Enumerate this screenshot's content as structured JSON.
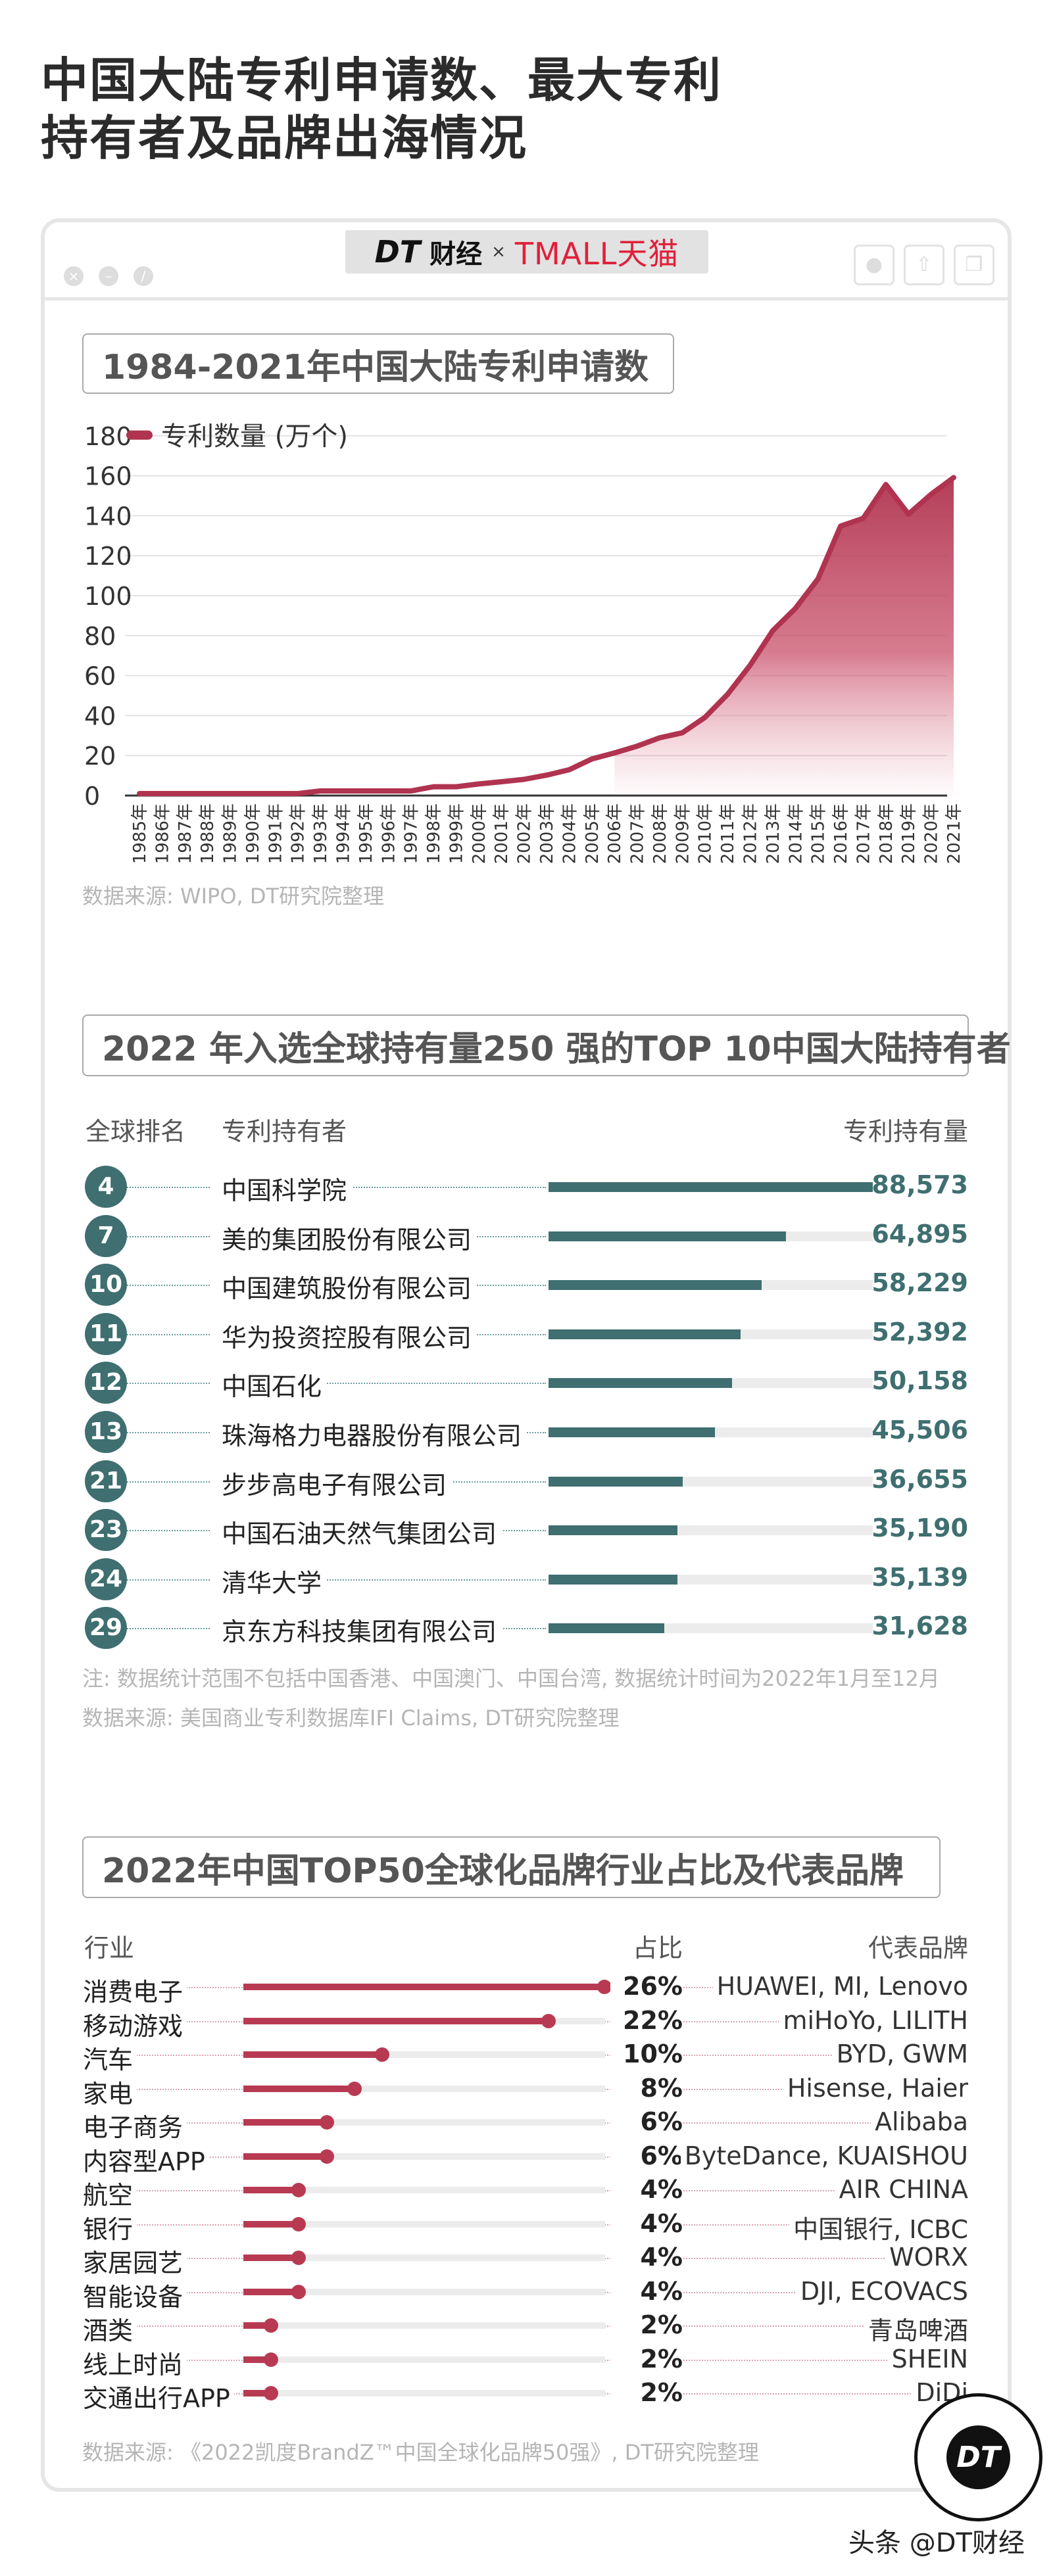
{
  "title_lines": [
    "中国大陆专利申请数、最大专利",
    "持有者及品牌出海情况"
  ],
  "window": {
    "logo_dt": "DT",
    "logo_cj": "财经",
    "logo_x": "×",
    "logo_tmall": "TMALL天猫"
  },
  "colors": {
    "chart_red": "#b0334f",
    "teal": "#3f6f70",
    "lollipop_red": "#b83a52"
  },
  "section1": {
    "title": "1984-2021年中国大陆专利申请数",
    "source": "数据来源: WIPO, DT研究院整理"
  },
  "section2": {
    "title": "2022 年入选全球持有量250 强的TOP 10中国大陆持有者",
    "headers": {
      "rank": "全球排名",
      "holder": "专利持有者",
      "count": "专利持有量"
    },
    "note": "注: 数据统计范围不包括中国香港、中国澳门、中国台湾, 数据统计时间为2022年1月至12月",
    "source": "数据来源: 美国商业专利数据库IFI Claims, DT研究院整理"
  },
  "section3": {
    "title": "2022年中国TOP50全球化品牌行业占比及代表品牌",
    "headers": {
      "industry": "行业",
      "share": "占比",
      "brands": "代表品牌"
    },
    "source": "数据来源: 《2022凯度BrandZ™中国全球化品牌50强》, DT研究院整理"
  },
  "watermark": {
    "logo": "DT",
    "text": "头条 @DT财经"
  },
  "chart_data": [
    {
      "type": "area",
      "title": "1984-2021年中国大陆专利申请数",
      "legend": "专利数量 (万个)",
      "legend_position": "top-left",
      "ylim": [
        0,
        180
      ],
      "yticks": [
        0,
        20,
        40,
        60,
        80,
        100,
        120,
        140,
        160,
        180
      ],
      "grid": true,
      "x": [
        "1985年",
        "1986年",
        "1987年",
        "1988年",
        "1989年",
        "1990年",
        "1991年",
        "1992年",
        "1993年",
        "1994年",
        "1995年",
        "1996年",
        "1997年",
        "1998年",
        "1999年",
        "2000年",
        "2001年",
        "2002年",
        "2003年",
        "2004年",
        "2005年",
        "2006年",
        "2007年",
        "2008年",
        "2009年",
        "2010年",
        "2011年",
        "2012年",
        "2013年",
        "2014年",
        "2015年",
        "2016年",
        "2017年",
        "2018年",
        "2019年",
        "2020年",
        "2021年"
      ],
      "series": [
        {
          "name": "专利数量 (万个)",
          "values": [
            1,
            1,
            1,
            1,
            1,
            1,
            1,
            1,
            2.3,
            2.3,
            2.3,
            2.3,
            2.3,
            4.4,
            4.4,
            5.8,
            6.9,
            8.1,
            10.2,
            12.9,
            18.3,
            21.3,
            24.7,
            28.9,
            31.4,
            39.1,
            50.6,
            65.2,
            82.5,
            93.6,
            108.4,
            134.8,
            138.7,
            155.6,
            140.8,
            150.7,
            159.1
          ]
        }
      ]
    },
    {
      "type": "bar",
      "title": "2022 年入选全球持有量250 强的TOP 10中国大陆持有者",
      "rows": [
        {
          "rank": "4",
          "holder": "中国科学院",
          "value": 88573,
          "label": "88,573"
        },
        {
          "rank": "7",
          "holder": "美的集团股份有限公司",
          "value": 64895,
          "label": "64,895"
        },
        {
          "rank": "10",
          "holder": "中国建筑股份有限公司",
          "value": 58229,
          "label": "58,229"
        },
        {
          "rank": "11",
          "holder": "华为投资控股有限公司",
          "value": 52392,
          "label": "52,392"
        },
        {
          "rank": "12",
          "holder": "中国石化",
          "value": 50158,
          "label": "50,158"
        },
        {
          "rank": "13",
          "holder": "珠海格力电器股份有限公司",
          "value": 45506,
          "label": "45,506"
        },
        {
          "rank": "21",
          "holder": "步步高电子有限公司",
          "value": 36655,
          "label": "36,655"
        },
        {
          "rank": "23",
          "holder": "中国石油天然气集团公司",
          "value": 35190,
          "label": "35,190"
        },
        {
          "rank": "24",
          "holder": "清华大学",
          "value": 35139,
          "label": "35,139"
        },
        {
          "rank": "29",
          "holder": "京东方科技集团有限公司",
          "value": 31628,
          "label": "31,628"
        }
      ]
    },
    {
      "type": "bar",
      "title": "2022年中国TOP50全球化品牌行业占比及代表品牌",
      "rows": [
        {
          "industry": "消费电子",
          "value": 26,
          "label": "26%",
          "brands": "HUAWEI, MI, Lenovo"
        },
        {
          "industry": "移动游戏",
          "value": 22,
          "label": "22%",
          "brands": "miHoYo, LILITH"
        },
        {
          "industry": "汽车",
          "value": 10,
          "label": "10%",
          "brands": "BYD, GWM"
        },
        {
          "industry": "家电",
          "value": 8,
          "label": "8%",
          "brands": "Hisense, Haier"
        },
        {
          "industry": "电子商务",
          "value": 6,
          "label": "6%",
          "brands": "Alibaba"
        },
        {
          "industry": "内容型APP",
          "value": 6,
          "label": "6%",
          "brands": "ByteDance, KUAISHOU"
        },
        {
          "industry": "航空",
          "value": 4,
          "label": "4%",
          "brands": "AIR CHINA"
        },
        {
          "industry": "银行",
          "value": 4,
          "label": "4%",
          "brands": "中国银行, ICBC"
        },
        {
          "industry": "家居园艺",
          "value": 4,
          "label": "4%",
          "brands": "WORX"
        },
        {
          "industry": "智能设备",
          "value": 4,
          "label": "4%",
          "brands": "DJI, ECOVACS"
        },
        {
          "industry": "酒类",
          "value": 2,
          "label": "2%",
          "brands": "青岛啤酒"
        },
        {
          "industry": "线上时尚",
          "value": 2,
          "label": "2%",
          "brands": "SHEIN"
        },
        {
          "industry": "交通出行APP",
          "value": 2,
          "label": "2%",
          "brands": "DiDi"
        }
      ]
    }
  ]
}
